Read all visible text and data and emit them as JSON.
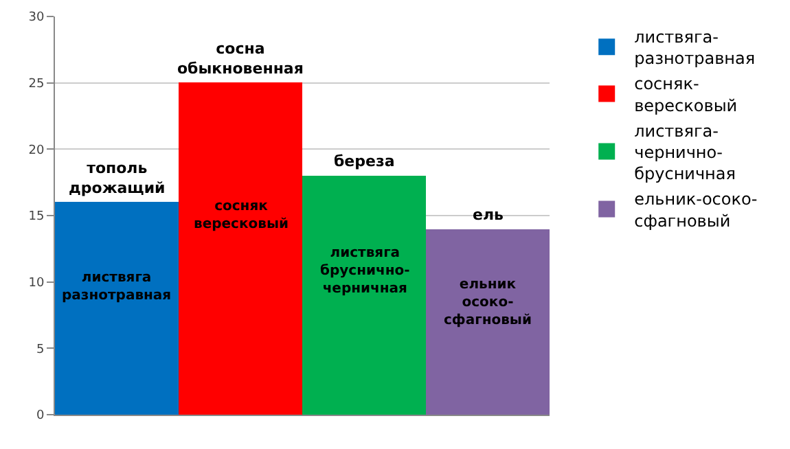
{
  "chart_data": {
    "type": "bar",
    "categories": [
      null,
      null,
      null,
      null
    ],
    "series": [
      {
        "name": "листвяга-разнотравная",
        "color": "#0070c0",
        "values": [
          16,
          null,
          null,
          null
        ]
      },
      {
        "name": "сосняк-вересковый",
        "color": "#ff0000",
        "values": [
          null,
          25,
          null,
          null
        ]
      },
      {
        "name": "листвяга-чернично-брусничная",
        "color": "#00b050",
        "values": [
          null,
          null,
          18,
          null
        ]
      },
      {
        "name": "ельник-осоко-сфагновый",
        "color": "#8064a2",
        "values": [
          null,
          null,
          null,
          14
        ]
      }
    ],
    "ylim": [
      0,
      30
    ],
    "yticks": [
      0,
      5,
      10,
      15,
      20,
      25,
      30
    ],
    "grid": "y",
    "legend": "right",
    "annotations": [
      "тополь дрожащий",
      "сосна обыкновенная",
      "береза",
      "ель",
      "листвяга разнотравная",
      "сосняк вересковый",
      "листвяга бруснично-черничная",
      "ельник осоко-сфагновый"
    ]
  }
}
